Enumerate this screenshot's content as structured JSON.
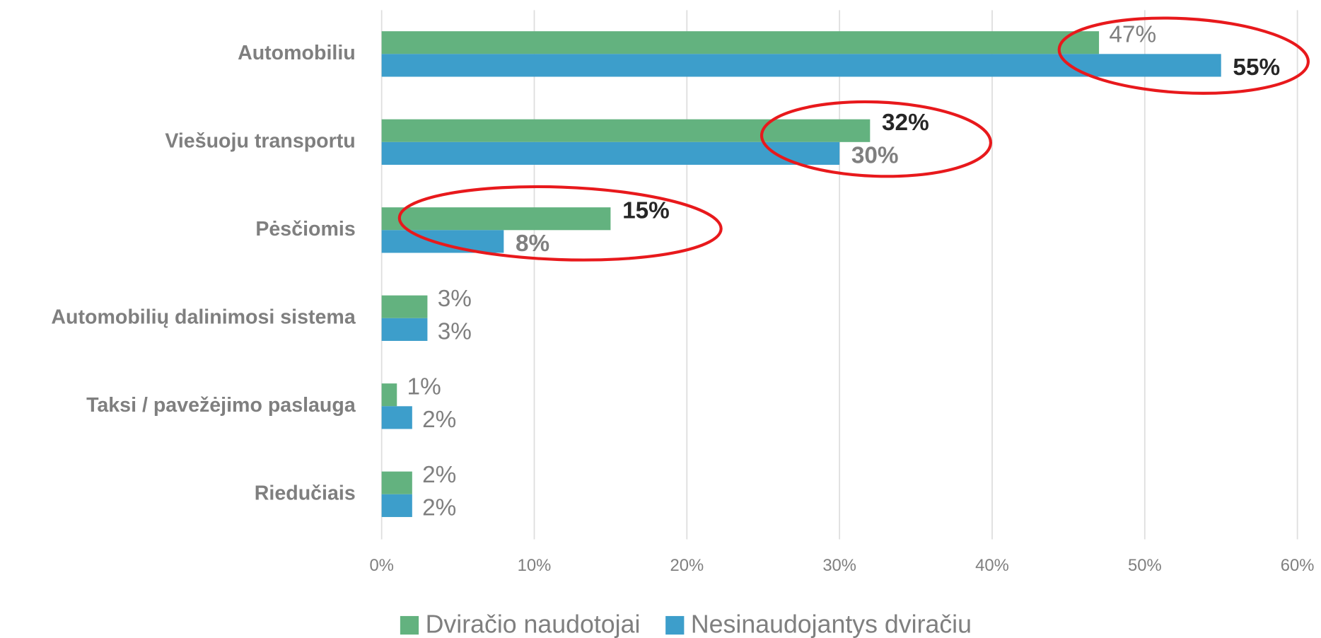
{
  "chart_data": {
    "type": "barh",
    "categories": [
      "Automobiliu",
      "Viešuoju transportu",
      "Pėsčiomis",
      "Automobilių dalinimosi sistema",
      "Taksi / pavežėjimo paslauga",
      "Riedučiais"
    ],
    "series": [
      {
        "name": "Dviračio naudotojai",
        "color": "#63b27f",
        "values": [
          47,
          32,
          15,
          3,
          1,
          2
        ],
        "value_labels": [
          "47%",
          "32%",
          "15%",
          "3%",
          "1%",
          "2%"
        ]
      },
      {
        "name": "Nesinaudojantys dviračiu",
        "color": "#3d9ecb",
        "values": [
          55,
          30,
          8,
          3,
          2,
          2
        ],
        "value_labels": [
          "55%",
          "30%",
          "8%",
          "3%",
          "2%",
          "2%"
        ]
      }
    ],
    "xlim": [
      0,
      60
    ],
    "xticks": [
      {
        "value": 0,
        "label": "0%"
      },
      {
        "value": 10,
        "label": "10%"
      },
      {
        "value": 20,
        "label": "20%"
      },
      {
        "value": 30,
        "label": "30%"
      },
      {
        "value": 40,
        "label": "40%"
      },
      {
        "value": 50,
        "label": "50%"
      },
      {
        "value": 60,
        "label": "60%"
      }
    ],
    "grid": true,
    "legend": "bottom"
  }
}
